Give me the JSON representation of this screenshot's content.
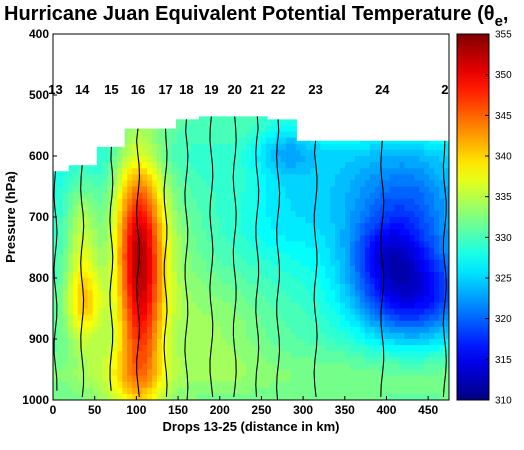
{
  "chart_data": {
    "type": "heatmap",
    "title": "Hurricane Juan Equivalent Potential Temperature (θ",
    "title_sub": "e",
    "title_tail": ",",
    "xlabel": "Drops 13-25 (distance in km)",
    "ylabel": "Pressure (hPa)",
    "xlim": [
      0,
      475
    ],
    "ylim": [
      400,
      1000
    ],
    "y_inverted": true,
    "x_ticks": [
      0,
      50,
      100,
      150,
      200,
      250,
      300,
      350,
      400,
      450
    ],
    "y_ticks": [
      400,
      500,
      600,
      700,
      800,
      900,
      1000
    ],
    "colorbar": {
      "vmin": 310,
      "vmax": 355,
      "ticks": [
        310,
        315,
        320,
        325,
        330,
        335,
        340,
        345,
        350,
        355
      ],
      "colormap": "jet"
    },
    "drops": [
      {
        "label": "13",
        "x": 3,
        "top": 625
      },
      {
        "label": "14",
        "x": 35,
        "top": 615
      },
      {
        "label": "15",
        "x": 70,
        "top": 585
      },
      {
        "label": "16",
        "x": 102,
        "top": 555
      },
      {
        "label": "17",
        "x": 135,
        "top": 555
      },
      {
        "label": "18",
        "x": 160,
        "top": 540
      },
      {
        "label": "19",
        "x": 190,
        "top": 535
      },
      {
        "label": "20",
        "x": 218,
        "top": 535
      },
      {
        "label": "21",
        "x": 245,
        "top": 535
      },
      {
        "label": "22",
        "x": 270,
        "top": 540
      },
      {
        "label": "23",
        "x": 315,
        "top": 575
      },
      {
        "label": "24",
        "x": 395,
        "top": 575
      },
      {
        "label": "2",
        "x": 470,
        "top": 575
      }
    ],
    "field": {
      "base": [
        {
          "p": 550,
          "v": 330
        },
        {
          "p": 600,
          "v": 328
        },
        {
          "p": 700,
          "v": 329
        },
        {
          "p": 800,
          "v": 330
        },
        {
          "p": 900,
          "v": 331
        },
        {
          "p": 960,
          "v": 333
        },
        {
          "p": 1000,
          "v": 332
        }
      ],
      "features": [
        {
          "x": 105,
          "p": 820,
          "amp": 18,
          "sx": 20,
          "sp": 130
        },
        {
          "x": 100,
          "p": 700,
          "amp": 9,
          "sx": 22,
          "sp": 90
        },
        {
          "x": 38,
          "p": 840,
          "amp": 10,
          "sx": 16,
          "sp": 50
        },
        {
          "x": 35,
          "p": 720,
          "amp": 6,
          "sx": 14,
          "sp": 60
        },
        {
          "x": 150,
          "p": 740,
          "amp": 3,
          "sx": 25,
          "sp": 120
        },
        {
          "x": 430,
          "p": 830,
          "amp": -14,
          "sx": 50,
          "sp": 55
        },
        {
          "x": 400,
          "p": 760,
          "amp": -6,
          "sx": 30,
          "sp": 40
        },
        {
          "x": 430,
          "p": 690,
          "amp": -7,
          "sx": 45,
          "sp": 70
        },
        {
          "x": 360,
          "p": 680,
          "amp": -3,
          "sx": 60,
          "sp": 80
        },
        {
          "x": 280,
          "p": 590,
          "amp": -4,
          "sx": 25,
          "sp": 30
        },
        {
          "x": 260,
          "p": 700,
          "amp": -2,
          "sx": 40,
          "sp": 60
        },
        {
          "x": 220,
          "p": 640,
          "amp": 2,
          "sx": 30,
          "sp": 80
        },
        {
          "x": 200,
          "p": 880,
          "amp": 3,
          "sx": 40,
          "sp": 70
        },
        {
          "x": 80,
          "p": 960,
          "amp": 3,
          "sx": 30,
          "sp": 40
        }
      ]
    }
  }
}
